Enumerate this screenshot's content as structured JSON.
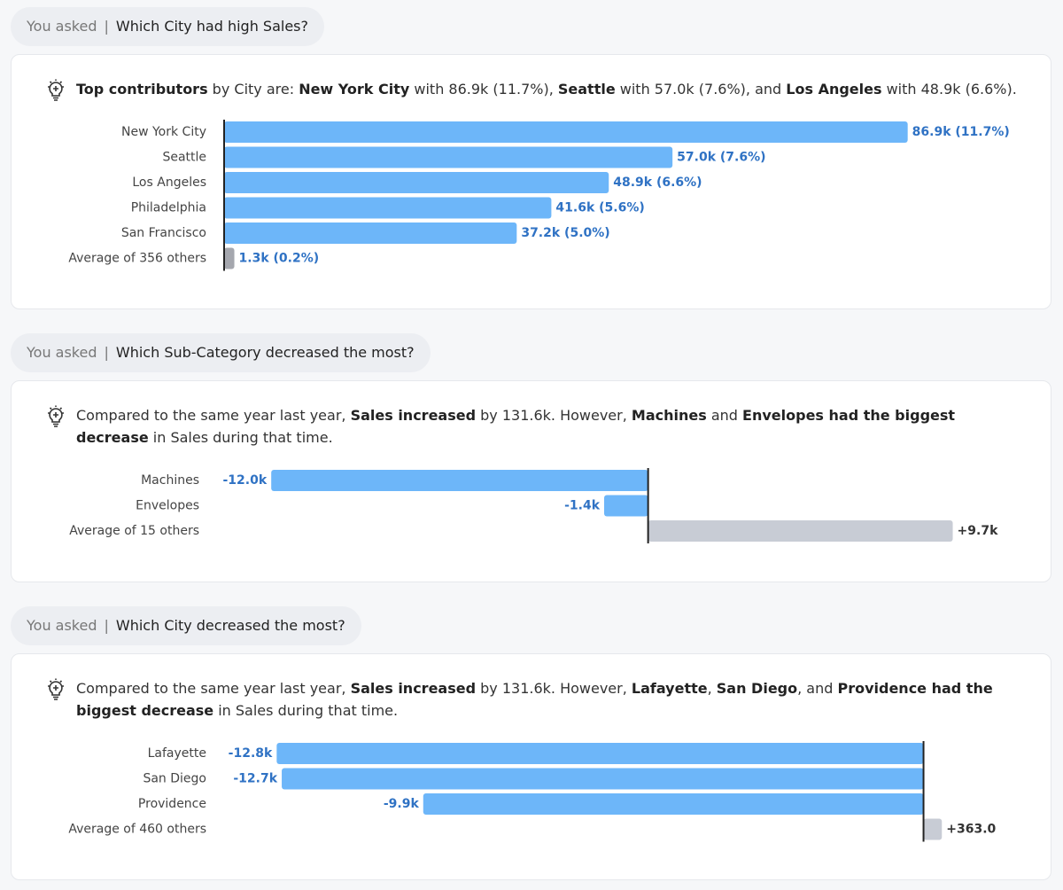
{
  "prompt_label": "You asked",
  "cards": [
    {
      "question": "Which City had high Sales?",
      "summary": [
        {
          "text": "Top contributors",
          "bold": true
        },
        {
          "text": " by City are: "
        },
        {
          "text": "New York City",
          "bold": true
        },
        {
          "text": " with 86.9k (11.7%), "
        },
        {
          "text": "Seattle",
          "bold": true
        },
        {
          "text": " with 57.0k (7.6%), and "
        },
        {
          "text": "Los Angeles",
          "bold": true
        },
        {
          "text": " with 48.9k (6.6%)."
        }
      ],
      "chart": {
        "type": "bar",
        "orientation": "horizontal",
        "categories": [
          "New York City",
          "Seattle",
          "Los Angeles",
          "Philadelphia",
          "San Francisco",
          "Average of 356 others"
        ],
        "values": [
          86900,
          57000,
          48900,
          41600,
          37200,
          1300
        ],
        "value_labels": [
          "86.9k (11.7%)",
          "57.0k (7.6%)",
          "48.9k (6.6%)",
          "41.6k (5.6%)",
          "37.2k (5.0%)",
          "1.3k (0.2%)"
        ],
        "colors": [
          "#6db6f9",
          "#6db6f9",
          "#6db6f9",
          "#6db6f9",
          "#6db6f9",
          "#a5a7ae"
        ],
        "label_colors": [
          "#2f72c4",
          "#2f72c4",
          "#2f72c4",
          "#2f72c4",
          "#2f72c4",
          "#2f72c4"
        ],
        "xlim": [
          0,
          100000
        ]
      }
    },
    {
      "question": "Which Sub-Category decreased the most?",
      "summary": [
        {
          "text": "Compared to the same year last year, "
        },
        {
          "text": "Sales increased",
          "bold": true
        },
        {
          "text": " by 131.6k. However, "
        },
        {
          "text": "Machines",
          "bold": true
        },
        {
          "text": " and "
        },
        {
          "text": "Envelopes had the biggest decrease",
          "bold": true
        },
        {
          "text": " in Sales during that time."
        }
      ],
      "chart": {
        "type": "bar",
        "orientation": "horizontal",
        "categories": [
          "Machines",
          "Envelopes",
          "Average of 15 others"
        ],
        "values": [
          -12000,
          -1400,
          9700
        ],
        "value_labels": [
          "-12.0k",
          "-1.4k",
          "+9.7k"
        ],
        "colors": [
          "#6db6f9",
          "#6db6f9",
          "#c8ccd5"
        ],
        "label_colors": [
          "#2f72c4",
          "#2f72c4",
          "#333333"
        ],
        "xlim": [
          -13500,
          10700
        ]
      }
    },
    {
      "question": "Which City decreased the most?",
      "summary": [
        {
          "text": "Compared to the same year last year, "
        },
        {
          "text": "Sales increased",
          "bold": true
        },
        {
          "text": " by 131.6k. However, "
        },
        {
          "text": "Lafayette",
          "bold": true
        },
        {
          "text": ", "
        },
        {
          "text": "San Diego",
          "bold": true
        },
        {
          "text": ", and "
        },
        {
          "text": "Providence had the biggest decrease",
          "bold": true
        },
        {
          "text": " in Sales during that time."
        }
      ],
      "chart": {
        "type": "bar",
        "orientation": "horizontal",
        "categories": [
          "Lafayette",
          "San Diego",
          "Providence",
          "Average of 460 others"
        ],
        "values": [
          -12800,
          -12700,
          -9900,
          363
        ],
        "value_labels": [
          "-12.8k",
          "-12.7k",
          "-9.9k",
          "+363.0"
        ],
        "colors": [
          "#6db6f9",
          "#6db6f9",
          "#6db6f9",
          "#c8ccd5"
        ],
        "label_colors": [
          "#2f72c4",
          "#2f72c4",
          "#2f72c4",
          "#333333"
        ],
        "xlim": [
          -13700,
          1200
        ]
      }
    }
  ]
}
